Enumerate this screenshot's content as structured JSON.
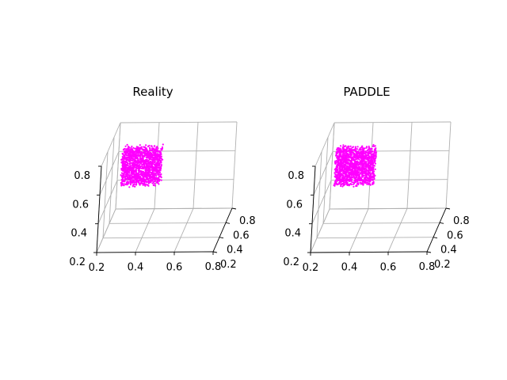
{
  "chart_data": [
    {
      "type": "scatter",
      "title": "Reality",
      "projection": "3d",
      "xlabel": "",
      "ylabel": "",
      "zlabel": "",
      "xlim": [
        0.2,
        0.8
      ],
      "ylim": [
        0.2,
        0.8
      ],
      "zlim": [
        0.2,
        0.8
      ],
      "xticks": [
        "0.2",
        "0.4",
        "0.6",
        "0.8"
      ],
      "yticks": [
        "0.2",
        "0.4",
        "0.6",
        "0.8"
      ],
      "zticks": [
        "0.2",
        "0.4",
        "0.6",
        "0.8"
      ],
      "grid": true,
      "point_color": "#ff00ff",
      "point_cloud": {
        "description_ranges": {
          "x": [
            0.3,
            0.5
          ],
          "y": [
            0.2,
            0.3
          ],
          "z": [
            0.65,
            0.9
          ]
        },
        "n_points": 1500
      }
    },
    {
      "type": "scatter",
      "title": "PADDLE",
      "projection": "3d",
      "xlabel": "",
      "ylabel": "",
      "zlabel": "",
      "xlim": [
        0.2,
        0.8
      ],
      "ylim": [
        0.2,
        0.8
      ],
      "zlim": [
        0.2,
        0.8
      ],
      "xticks": [
        "0.2",
        "0.4",
        "0.6",
        "0.8"
      ],
      "yticks": [
        "0.2",
        "0.4",
        "0.6",
        "0.8"
      ],
      "zticks": [
        "0.2",
        "0.4",
        "0.6",
        "0.8"
      ],
      "grid": true,
      "point_color": "#ff00ff",
      "point_cloud": {
        "description_ranges": {
          "x": [
            0.3,
            0.5
          ],
          "y": [
            0.2,
            0.3
          ],
          "z": [
            0.65,
            0.9
          ]
        },
        "n_points": 1500
      }
    }
  ]
}
